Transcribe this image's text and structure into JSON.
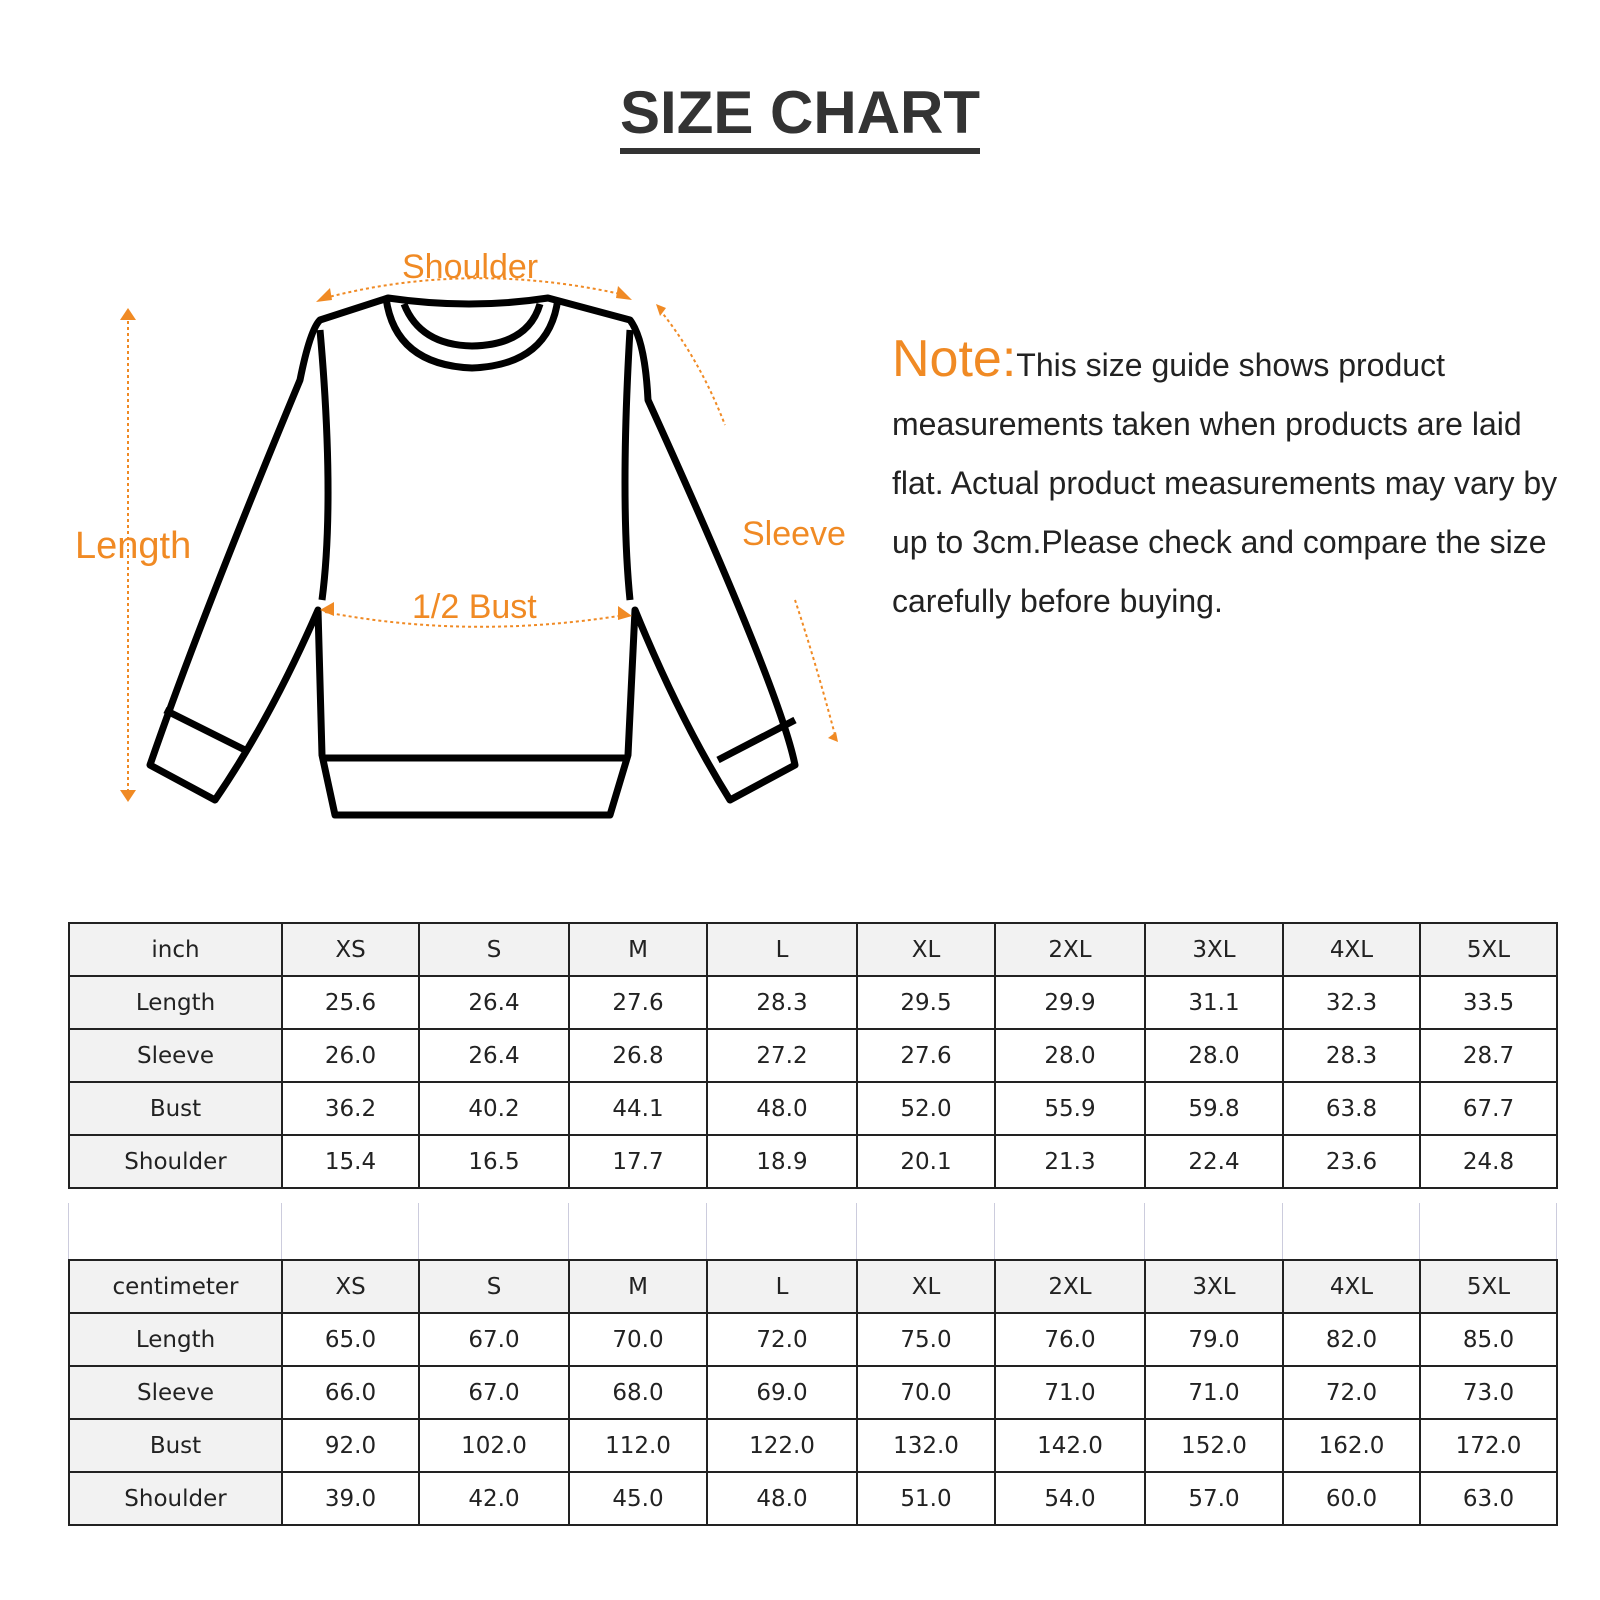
{
  "title": "SIZE CHART",
  "diagram": {
    "shoulder": "Shoulder",
    "length": "Length",
    "sleeve": "Sleeve",
    "bust": "1/2 Bust"
  },
  "note": {
    "heading": "Note:",
    "text": "This size guide shows product measurements taken when products are laid flat. Actual product measurements may vary by up to 3cm.Please check and compare the size carefully before buying."
  },
  "colors": {
    "accent": "#f08a24",
    "header_bg": "#f2f2f2"
  },
  "tables": [
    {
      "unit": "inch",
      "sizes": [
        "XS",
        "S",
        "M",
        "L",
        "XL",
        "2XL",
        "3XL",
        "4XL",
        "5XL"
      ],
      "rows": [
        {
          "label": "Length",
          "values": [
            "25.6",
            "26.4",
            "27.6",
            "28.3",
            "29.5",
            "29.9",
            "31.1",
            "32.3",
            "33.5"
          ]
        },
        {
          "label": "Sleeve",
          "values": [
            "26.0",
            "26.4",
            "26.8",
            "27.2",
            "27.6",
            "28.0",
            "28.0",
            "28.3",
            "28.7"
          ]
        },
        {
          "label": "Bust",
          "values": [
            "36.2",
            "40.2",
            "44.1",
            "48.0",
            "52.0",
            "55.9",
            "59.8",
            "63.8",
            "67.7"
          ]
        },
        {
          "label": "Shoulder",
          "values": [
            "15.4",
            "16.5",
            "17.7",
            "18.9",
            "20.1",
            "21.3",
            "22.4",
            "23.6",
            "24.8"
          ]
        }
      ]
    },
    {
      "unit": "centimeter",
      "sizes": [
        "XS",
        "S",
        "M",
        "L",
        "XL",
        "2XL",
        "3XL",
        "4XL",
        "5XL"
      ],
      "rows": [
        {
          "label": "Length",
          "values": [
            "65.0",
            "67.0",
            "70.0",
            "72.0",
            "75.0",
            "76.0",
            "79.0",
            "82.0",
            "85.0"
          ]
        },
        {
          "label": "Sleeve",
          "values": [
            "66.0",
            "67.0",
            "68.0",
            "69.0",
            "70.0",
            "71.0",
            "71.0",
            "72.0",
            "73.0"
          ]
        },
        {
          "label": "Bust",
          "values": [
            "92.0",
            "102.0",
            "112.0",
            "122.0",
            "132.0",
            "142.0",
            "152.0",
            "162.0",
            "172.0"
          ]
        },
        {
          "label": "Shoulder",
          "values": [
            "39.0",
            "42.0",
            "45.0",
            "48.0",
            "51.0",
            "54.0",
            "57.0",
            "60.0",
            "63.0"
          ]
        }
      ]
    }
  ]
}
